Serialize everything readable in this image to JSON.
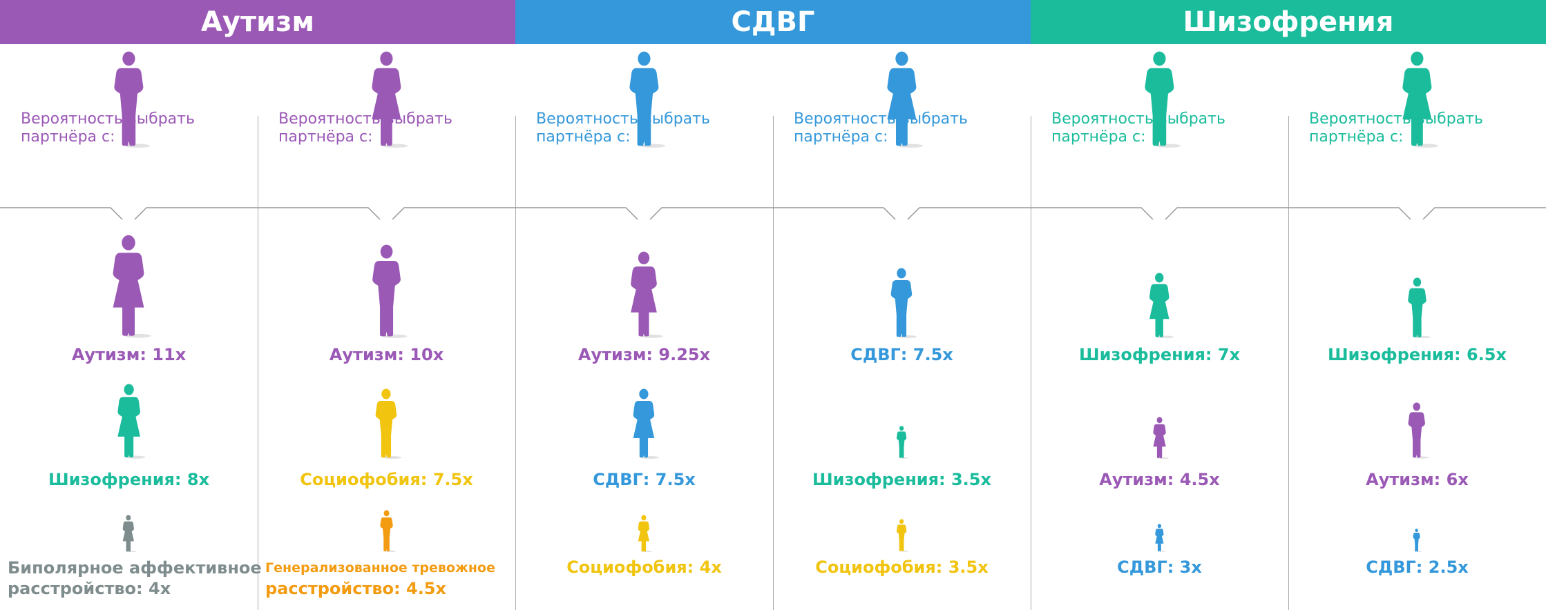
{
  "colors": {
    "autism": "#9b59b6",
    "adhd": "#3498db",
    "schizophrenia": "#1abc9c",
    "social_phobia": "#f1c40f",
    "gad": "#f39c12",
    "bipolar": "#7f8c8d"
  },
  "headers": [
    {
      "title": "Аутизм",
      "color": "#9b59b6"
    },
    {
      "title": "СДВГ",
      "color": "#3498db"
    },
    {
      "title": "Шизофрения",
      "color": "#1abc9c"
    }
  ],
  "columns": [
    {
      "gender": "man",
      "color": "#9b59b6",
      "prompt_line1": "Вероятность выбрать",
      "prompt_line2": "партнёра с:",
      "partners": [
        {
          "gender": "woman",
          "color": "#9b59b6",
          "label": "Аутизм: 11x",
          "value": 11
        },
        {
          "gender": "woman",
          "color": "#1abc9c",
          "label": "Шизофрения: 8x",
          "value": 8
        },
        {
          "gender": "woman",
          "color": "#7f8c8d",
          "label_line1": "Биполярное аффективное",
          "label_line2": "расстройство: 4x",
          "value": 4
        }
      ]
    },
    {
      "gender": "woman",
      "color": "#9b59b6",
      "prompt_line1": "Вероятность выбрать",
      "prompt_line2": "партнёра с:",
      "partners": [
        {
          "gender": "man",
          "color": "#9b59b6",
          "label": "Аутизм: 10x",
          "value": 10
        },
        {
          "gender": "man",
          "color": "#f1c40f",
          "label": "Социофобия: 7.5x",
          "value": 7.5
        },
        {
          "gender": "man",
          "color": "#f39c12",
          "label_line1": "Генерализованное тревожное",
          "label_line2": "расстройство: 4.5x",
          "value": 4.5
        }
      ]
    },
    {
      "gender": "man",
      "color": "#3498db",
      "prompt_line1": "Вероятность выбрать",
      "prompt_line2": "партнёра с:",
      "partners": [
        {
          "gender": "woman",
          "color": "#9b59b6",
          "label": "Аутизм: 9.25x",
          "value": 9.25
        },
        {
          "gender": "woman",
          "color": "#3498db",
          "label": "СДВГ: 7.5x",
          "value": 7.5
        },
        {
          "gender": "woman",
          "color": "#f1c40f",
          "label": "Социофобия: 4x",
          "value": 4
        }
      ]
    },
    {
      "gender": "woman",
      "color": "#3498db",
      "prompt_line1": "Вероятность выбрать",
      "prompt_line2": "партнёра с:",
      "partners": [
        {
          "gender": "man",
          "color": "#3498db",
          "label": "СДВГ: 7.5x",
          "value": 7.5
        },
        {
          "gender": "man",
          "color": "#1abc9c",
          "label": "Шизофрения: 3.5x",
          "value": 3.5
        },
        {
          "gender": "man",
          "color": "#f1c40f",
          "label": "Социофобия: 3.5x",
          "value": 3.5
        }
      ]
    },
    {
      "gender": "man",
      "color": "#1abc9c",
      "prompt_line1": "Вероятность выбрать",
      "prompt_line2": "партнёра с:",
      "partners": [
        {
          "gender": "woman",
          "color": "#1abc9c",
          "label": "Шизофрения: 7x",
          "value": 7
        },
        {
          "gender": "woman",
          "color": "#9b59b6",
          "label": "Аутизм: 4.5x",
          "value": 4.5
        },
        {
          "gender": "woman",
          "color": "#3498db",
          "label": "СДВГ: 3x",
          "value": 3
        }
      ]
    },
    {
      "gender": "woman",
      "color": "#1abc9c",
      "prompt_line1": "Вероятность выбрать",
      "prompt_line2": "партнёра с:",
      "partners": [
        {
          "gender": "man",
          "color": "#1abc9c",
          "label": "Шизофрения: 6.5x",
          "value": 6.5
        },
        {
          "gender": "man",
          "color": "#9b59b6",
          "label": "Аутизм: 6x",
          "value": 6
        },
        {
          "gender": "man",
          "color": "#3498db",
          "label": "СДВГ: 2.5x",
          "value": 2.5
        }
      ]
    }
  ]
}
